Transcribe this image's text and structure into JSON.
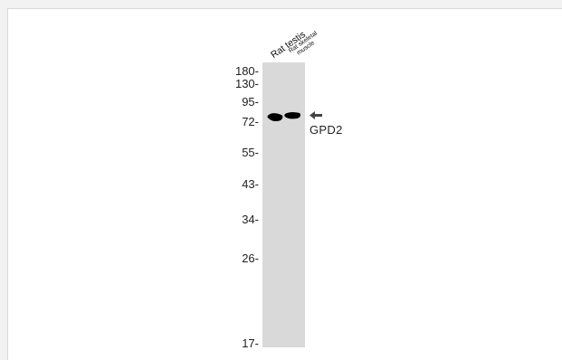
{
  "lanes": [
    {
      "label": "Rat testis"
    },
    {
      "label_line1": "Rat skeletal",
      "label_line2": "muscle"
    }
  ],
  "markers": [
    "180-",
    "130-",
    "95-",
    "72-",
    "55-",
    "43-",
    "34-",
    "26-",
    "17-"
  ],
  "target": "GPD2",
  "colors": {
    "background": "#f2f2f2",
    "panel": "#ffffff",
    "membrane": "#d9d9d9",
    "band": "#000000",
    "arrow": "#444444"
  }
}
